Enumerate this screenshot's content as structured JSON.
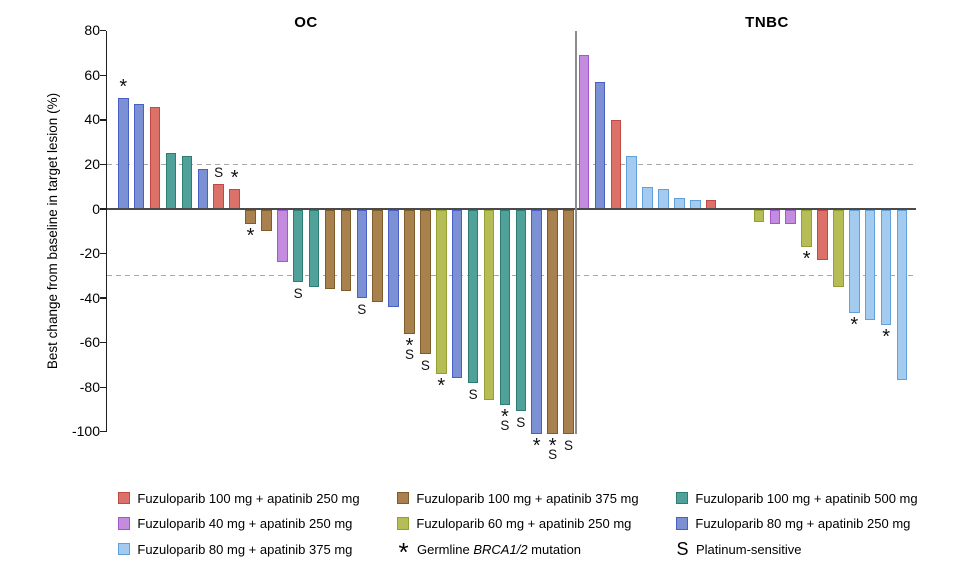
{
  "chart_data": {
    "type": "bar",
    "variant": "waterfall",
    "ylabel": "Best change from baseline in target lesion (%)",
    "ylim": [
      -100,
      80
    ],
    "yticks": [
      80,
      60,
      40,
      20,
      0,
      -20,
      -40,
      -60,
      -80,
      -100
    ],
    "reference_lines": [
      20,
      -30
    ],
    "legend_position": "bottom",
    "mark_meanings": {
      "*": "Germline BRCA1/2 mutation",
      "S": "Platinum-sensitive"
    },
    "series_colors": {
      "r250": {
        "label": "Fuzuloparib 100 mg + apatinib 250 mg",
        "fill": "#DB7168",
        "border": "#BE4A43"
      },
      "p40": {
        "label": "Fuzuloparib 40 mg + apatinib 250 mg",
        "fill": "#C48CDE",
        "border": "#A257CC"
      },
      "lb375": {
        "label": "Fuzuloparib 80 mg + apatinib 375 mg",
        "fill": "#A3CBEF",
        "border": "#62A0DA"
      },
      "br375": {
        "label": "Fuzuloparib 100 mg + apatinib 375 mg",
        "fill": "#A8814E",
        "border": "#7D5D2A"
      },
      "ol250": {
        "label": "Fuzuloparib 60 mg + apatinib 250 mg",
        "fill": "#B6BD57",
        "border": "#91A030"
      },
      "t500": {
        "label": "Fuzuloparib 100 mg + apatinib 500 mg",
        "fill": "#4FA19A",
        "border": "#2E7D75"
      },
      "b250": {
        "label": "Fuzuloparib 80 mg + apatinib 250 mg",
        "fill": "#7C90D4",
        "border": "#4A5FC5"
      }
    },
    "panels": [
      {
        "title": "OC",
        "bars": [
          {
            "s": "b250",
            "v": 50,
            "m": "*"
          },
          {
            "s": "b250",
            "v": 47
          },
          {
            "s": "r250",
            "v": 46
          },
          {
            "s": "t500",
            "v": 25
          },
          {
            "s": "t500",
            "v": 24
          },
          {
            "s": "b250",
            "v": 18
          },
          {
            "s": "r250",
            "v": 11,
            "m": "S"
          },
          {
            "s": "r250",
            "v": 9,
            "m": "*"
          },
          {
            "s": "br375",
            "v": -6,
            "m": "*"
          },
          {
            "s": "br375",
            "v": -9
          },
          {
            "s": "p40",
            "v": -23
          },
          {
            "s": "t500",
            "v": -32,
            "m": "S"
          },
          {
            "s": "t500",
            "v": -34
          },
          {
            "s": "br375",
            "v": -35
          },
          {
            "s": "br375",
            "v": -36
          },
          {
            "s": "b250",
            "v": -39,
            "m": "S"
          },
          {
            "s": "br375",
            "v": -41
          },
          {
            "s": "b250",
            "v": -43
          },
          {
            "s": "br375",
            "v": -55,
            "m": "*S"
          },
          {
            "s": "br375",
            "v": -64,
            "m": "S"
          },
          {
            "s": "ol250",
            "v": -73,
            "m": "*"
          },
          {
            "s": "b250",
            "v": -75
          },
          {
            "s": "t500",
            "v": -77,
            "m": "S"
          },
          {
            "s": "ol250",
            "v": -85
          },
          {
            "s": "t500",
            "v": -87,
            "m": "*S"
          },
          {
            "s": "t500",
            "v": -90,
            "m": "S"
          },
          {
            "s": "b250",
            "v": -100,
            "m": "*"
          },
          {
            "s": "br375",
            "v": -100,
            "m": "*S"
          },
          {
            "s": "br375",
            "v": -100,
            "m": "S"
          }
        ]
      },
      {
        "title": "TNBC",
        "bars": [
          {
            "s": "p40",
            "v": 69
          },
          {
            "s": "b250",
            "v": 57
          },
          {
            "s": "r250",
            "v": 40
          },
          {
            "s": "lb375",
            "v": 24
          },
          {
            "s": "lb375",
            "v": 10
          },
          {
            "s": "lb375",
            "v": 9
          },
          {
            "s": "lb375",
            "v": 5
          },
          {
            "s": "lb375",
            "v": 4
          },
          {
            "s": "r250",
            "v": 4
          },
          {
            "spacer": true
          },
          {
            "spacer": true
          },
          {
            "s": "ol250",
            "v": -5
          },
          {
            "s": "p40",
            "v": -6
          },
          {
            "s": "p40",
            "v": -6
          },
          {
            "s": "ol250",
            "v": -16,
            "m": "*"
          },
          {
            "s": "r250",
            "v": -22
          },
          {
            "s": "ol250",
            "v": -34
          },
          {
            "s": "lb375",
            "v": -46,
            "m": "*"
          },
          {
            "s": "lb375",
            "v": -49
          },
          {
            "s": "lb375",
            "v": -51,
            "m": "*"
          },
          {
            "s": "lb375",
            "v": -76
          }
        ]
      }
    ]
  },
  "legend": {
    "columns": [
      {
        "entries": [
          {
            "swatch": "r250"
          },
          {
            "swatch": "p40"
          },
          {
            "swatch": "lb375"
          }
        ]
      },
      {
        "entries": [
          {
            "swatch": "br375"
          },
          {
            "swatch": "ol250"
          },
          {
            "symbol": "*",
            "parts": [
              {
                "t": "Germline "
              },
              {
                "t": "BRCA1/2",
                "italic": true
              },
              {
                "t": " mutation"
              }
            ]
          }
        ]
      },
      {
        "entries": [
          {
            "swatch": "t500"
          },
          {
            "swatch": "b250"
          },
          {
            "symbol": "S",
            "parts": [
              {
                "t": "Platinum-sensitive"
              }
            ]
          }
        ]
      }
    ]
  }
}
